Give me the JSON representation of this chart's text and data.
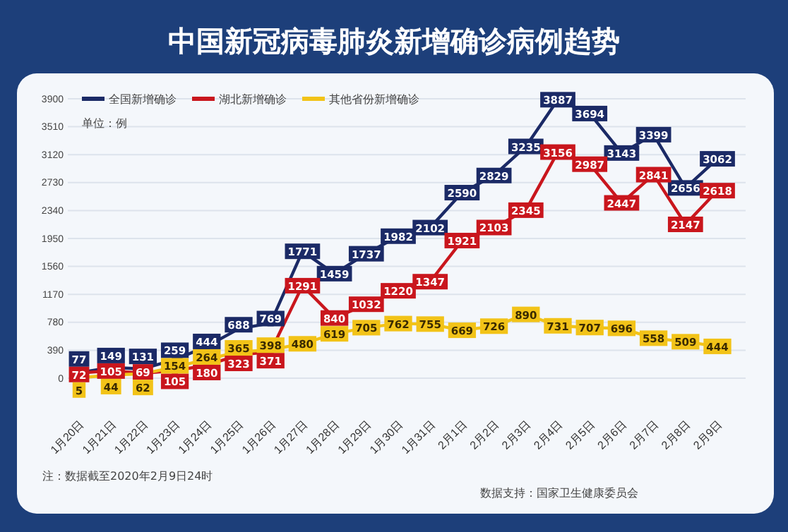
{
  "chart_data": {
    "type": "line",
    "title": "中国新冠病毒肺炎新增确诊病例趋势",
    "categories": [
      "1月20日",
      "1月21日",
      "1月22日",
      "1月23日",
      "1月24日",
      "1月25日",
      "1月26日",
      "1月27日",
      "1月28日",
      "1月29日",
      "1月30日",
      "1月31日",
      "2月1日",
      "2月2日",
      "2月3日",
      "2月4日",
      "2月5日",
      "2月6日",
      "2月7日",
      "2月8日",
      "2月9日"
    ],
    "series": [
      {
        "name": "全国新增确诊",
        "color": "#1b2a66",
        "values": [
          77,
          149,
          131,
          259,
          444,
          688,
          769,
          1771,
          1459,
          1737,
          1982,
          2102,
          2590,
          2829,
          3235,
          3887,
          3694,
          3143,
          3399,
          2656,
          3062
        ]
      },
      {
        "name": "湖北新增确诊",
        "color": "#c9161d",
        "values": [
          72,
          105,
          69,
          105,
          180,
          323,
          371,
          1291,
          840,
          1032,
          1220,
          1347,
          1921,
          2103,
          2345,
          3156,
          2987,
          2447,
          2841,
          2147,
          2618
        ]
      },
      {
        "name": "其他省份新增确诊",
        "color": "#f2c318",
        "values": [
          5,
          44,
          62,
          154,
          264,
          365,
          398,
          480,
          619,
          705,
          762,
          755,
          669,
          726,
          890,
          731,
          707,
          696,
          558,
          509,
          444
        ]
      }
    ],
    "ylim": [
      0,
      3900
    ],
    "yticks": [
      0,
      390,
      780,
      1170,
      1560,
      1950,
      2340,
      2730,
      3120,
      3510,
      3900
    ],
    "grid": "y",
    "legend": "top left",
    "data_labels": true,
    "marker": "square",
    "annotations": [
      "单位：例",
      "注：数据截至2020年2月9日24时",
      "数据支持：国家卫生健康委员会"
    ]
  }
}
